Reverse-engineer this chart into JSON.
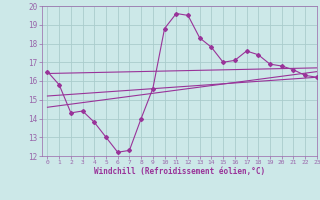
{
  "xlabel": "Windchill (Refroidissement éolien,°C)",
  "bg_color": "#cce8e8",
  "grid_color": "#aacccc",
  "line_color": "#993399",
  "spine_color": "#9966aa",
  "xlim": [
    -0.5,
    23
  ],
  "ylim": [
    12,
    20
  ],
  "xticks": [
    0,
    1,
    2,
    3,
    4,
    5,
    6,
    7,
    8,
    9,
    10,
    11,
    12,
    13,
    14,
    15,
    16,
    17,
    18,
    19,
    20,
    21,
    22,
    23
  ],
  "yticks": [
    12,
    13,
    14,
    15,
    16,
    17,
    18,
    19,
    20
  ],
  "main_x": [
    0,
    1,
    2,
    3,
    4,
    5,
    6,
    7,
    8,
    9,
    10,
    11,
    12,
    13,
    14,
    15,
    16,
    17,
    18,
    19,
    20,
    21,
    22,
    23
  ],
  "main_y": [
    16.5,
    15.8,
    14.3,
    14.4,
    13.8,
    13.0,
    12.2,
    12.3,
    14.0,
    15.6,
    18.8,
    19.6,
    19.5,
    18.3,
    17.8,
    17.0,
    17.1,
    17.6,
    17.4,
    16.9,
    16.8,
    16.6,
    16.3,
    16.2
  ],
  "line1_x": [
    0,
    23
  ],
  "line1_y": [
    16.4,
    16.7
  ],
  "line2_x": [
    0,
    23
  ],
  "line2_y": [
    15.2,
    16.2
  ],
  "line3_x": [
    0,
    23
  ],
  "line3_y": [
    14.6,
    16.5
  ]
}
